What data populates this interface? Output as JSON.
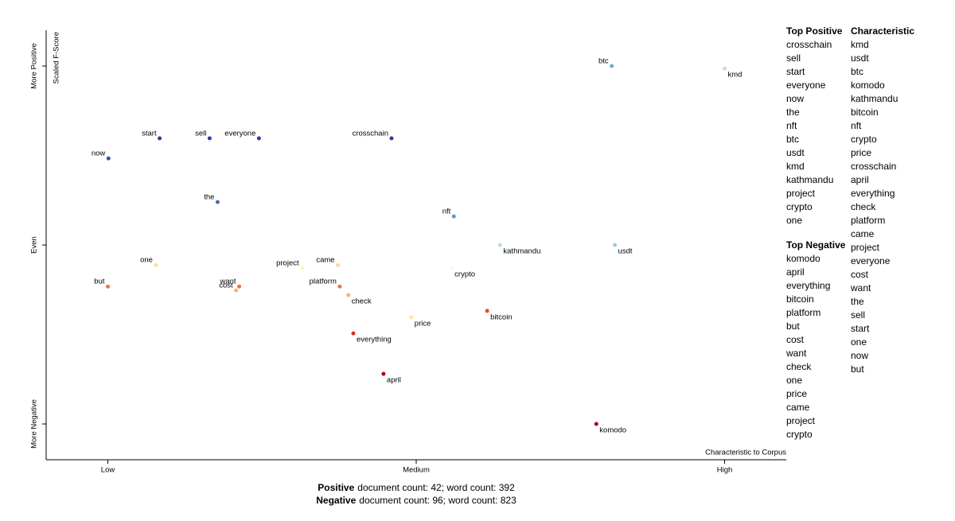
{
  "chart_data": {
    "type": "scatter",
    "x_label": "Characteristic to Corpus",
    "y_label": "Scaled F-Score",
    "xlim": [
      -0.1,
      1.1
    ],
    "ylim": [
      -0.1,
      1.1
    ],
    "xticks": [
      {
        "value": 0,
        "label": "Low"
      },
      {
        "value": 0.5,
        "label": "Medium"
      },
      {
        "value": 1,
        "label": "High"
      }
    ],
    "yticks": [
      {
        "value": 0,
        "label": "More Negative"
      },
      {
        "value": 0.5,
        "label": "Even"
      },
      {
        "value": 1,
        "label": "More Positive"
      }
    ],
    "points": [
      {
        "label": "btc",
        "x": 0.817,
        "y": 1.0,
        "color": "#6baed6"
      },
      {
        "label": "kmd",
        "x": 1.0,
        "y": 0.993,
        "color": "#c6dbef"
      },
      {
        "label": "start",
        "x": 0.084,
        "y": 0.798,
        "color": "#2c3e9a"
      },
      {
        "label": "sell",
        "x": 0.165,
        "y": 0.798,
        "color": "#2c3e9a"
      },
      {
        "label": "everyone",
        "x": 0.245,
        "y": 0.798,
        "color": "#2c3e9a"
      },
      {
        "label": "crosschain",
        "x": 0.46,
        "y": 0.798,
        "color": "#2c3e9a"
      },
      {
        "label": "now",
        "x": 0.001,
        "y": 0.742,
        "color": "#3550a0"
      },
      {
        "label": "the",
        "x": 0.178,
        "y": 0.62,
        "color": "#3f6db0"
      },
      {
        "label": "nft",
        "x": 0.561,
        "y": 0.58,
        "color": "#5a9bc8"
      },
      {
        "label": "kathmandu",
        "x": 0.636,
        "y": 0.5,
        "color": "#b8dcef"
      },
      {
        "label": "usdt",
        "x": 0.822,
        "y": 0.5,
        "color": "#9ecae1"
      },
      {
        "label": "one",
        "x": 0.078,
        "y": 0.444,
        "color": "#fee08b"
      },
      {
        "label": "project",
        "x": 0.315,
        "y": 0.436,
        "color": "#fff2c0"
      },
      {
        "label": "came",
        "x": 0.373,
        "y": 0.444,
        "color": "#fdd49e"
      },
      {
        "label": "crypto",
        "x": 0.557,
        "y": 0.436,
        "color": "#fff8e0"
      },
      {
        "label": "want",
        "x": 0.213,
        "y": 0.384,
        "color": "#f46d43"
      },
      {
        "label": "cost",
        "x": 0.208,
        "y": 0.373,
        "color": "#fdae61"
      },
      {
        "label": "but",
        "x": 0.0,
        "y": 0.384,
        "color": "#f46d43"
      },
      {
        "label": "platform",
        "x": 0.376,
        "y": 0.384,
        "color": "#f46d43"
      },
      {
        "label": "check",
        "x": 0.39,
        "y": 0.36,
        "color": "#fdb863"
      },
      {
        "label": "bitcoin",
        "x": 0.615,
        "y": 0.316,
        "color": "#e34a33"
      },
      {
        "label": "price",
        "x": 0.492,
        "y": 0.298,
        "color": "#fee6a0"
      },
      {
        "label": "everything",
        "x": 0.398,
        "y": 0.253,
        "color": "#d7301f"
      },
      {
        "label": "april",
        "x": 0.447,
        "y": 0.14,
        "color": "#b30000"
      },
      {
        "label": "komodo",
        "x": 0.792,
        "y": 0.0,
        "color": "#a50026"
      }
    ],
    "top_positive": {
      "title": "Top Positive",
      "terms": [
        "crosschain",
        "sell",
        "start",
        "everyone",
        "now",
        "the",
        "nft",
        "btc",
        "usdt",
        "kmd",
        "kathmandu",
        "project",
        "crypto",
        "one"
      ]
    },
    "top_negative": {
      "title": "Top Negative",
      "terms": [
        "komodo",
        "april",
        "everything",
        "bitcoin",
        "platform",
        "but",
        "cost",
        "want",
        "check",
        "one",
        "price",
        "came",
        "project",
        "crypto"
      ]
    },
    "characteristic": {
      "title": "Characteristic",
      "terms": [
        "kmd",
        "usdt",
        "btc",
        "komodo",
        "kathmandu",
        "bitcoin",
        "nft",
        "crypto",
        "price",
        "crosschain",
        "april",
        "everything",
        "check",
        "platform",
        "came",
        "project",
        "everyone",
        "cost",
        "want",
        "the",
        "sell",
        "start",
        "one",
        "now",
        "but"
      ]
    },
    "footer": [
      {
        "label": "Positive",
        "text": "document count: 42; word count: 392"
      },
      {
        "label": "Negative",
        "text": "document count: 96; word count: 823"
      }
    ]
  }
}
